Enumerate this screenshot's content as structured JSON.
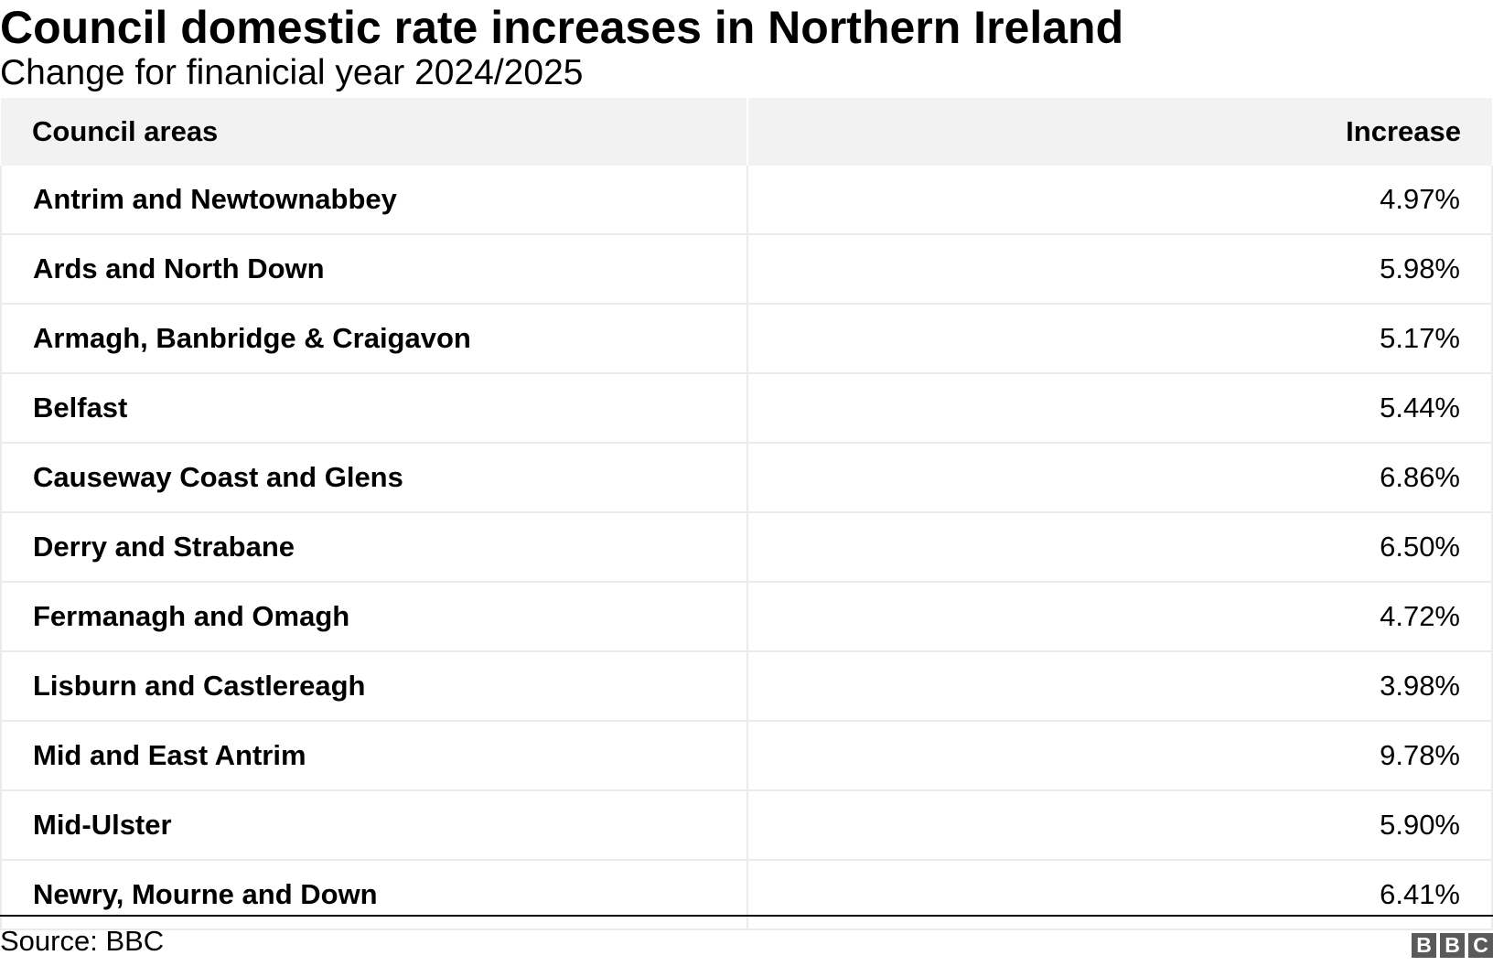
{
  "title": "Council domestic rate increases in Northern Ireland",
  "subtitle": "Change for finanicial year 2024/2025",
  "source": "Source: BBC",
  "logo_text": [
    "B",
    "B",
    "C"
  ],
  "chart_data": {
    "type": "table",
    "columns": [
      "Council areas",
      "Increase"
    ],
    "rows": [
      {
        "council": "Antrim and Newtownabbey",
        "increase": "4.97%"
      },
      {
        "council": "Ards and North Down",
        "increase": "5.98%"
      },
      {
        "council": "Armagh, Banbridge & Craigavon",
        "increase": "5.17%"
      },
      {
        "council": "Belfast",
        "increase": "5.44%"
      },
      {
        "council": "Causeway Coast and Glens",
        "increase": "6.86%"
      },
      {
        "council": "Derry and Strabane",
        "increase": "6.50%"
      },
      {
        "council": "Fermanagh and Omagh",
        "increase": "4.72%"
      },
      {
        "council": "Lisburn and Castlereagh",
        "increase": "3.98%"
      },
      {
        "council": "Mid and East Antrim",
        "increase": "9.78%"
      },
      {
        "council": "Mid-Ulster",
        "increase": "5.90%"
      },
      {
        "council": "Newry, Mourne and Down",
        "increase": "6.41%"
      }
    ]
  }
}
